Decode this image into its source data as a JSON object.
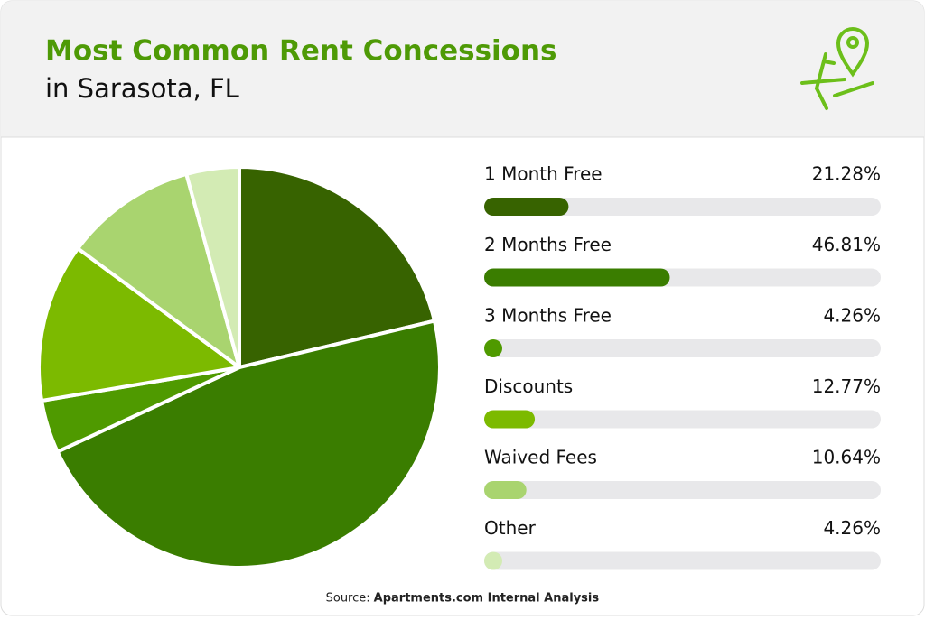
{
  "chart_data": {
    "type": "pie",
    "title": "Most Common Rent Concessions",
    "subtitle": "in Sarasota, FL",
    "categories": [
      "1 Month Free",
      "2 Months Free",
      "3 Months Free",
      "Discounts",
      "Waived Fees",
      "Other"
    ],
    "values": [
      21.28,
      46.81,
      4.26,
      12.77,
      10.64,
      4.26
    ],
    "value_labels": [
      "21.28%",
      "46.81%",
      "4.26%",
      "12.77%",
      "10.64%",
      "4.26%"
    ],
    "colors": [
      "#376300",
      "#3a7d00",
      "#4f9a00",
      "#7cba00",
      "#a9d46f",
      "#d3ebb4"
    ],
    "xlim": [
      0,
      100
    ],
    "source_label": "Source:",
    "source": "Apartments.com Internal Analysis"
  }
}
